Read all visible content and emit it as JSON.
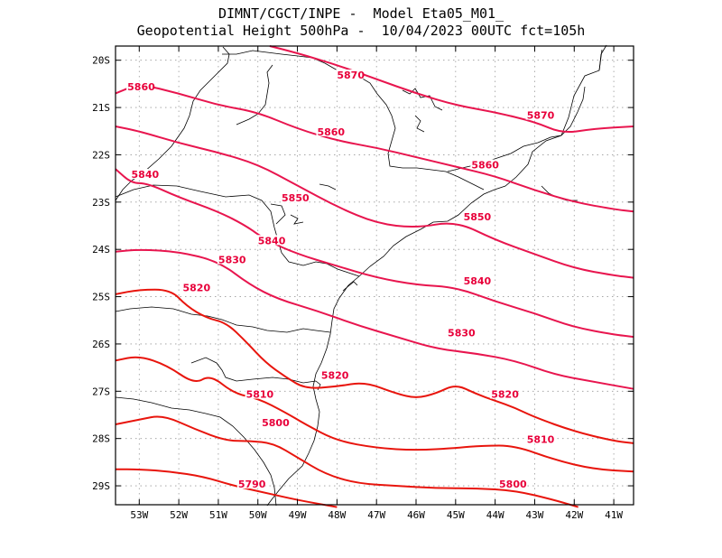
{
  "title": {
    "line1": "DIMNT/CGCT/INPE -  Model Eta05_M01_",
    "line2": "Geopotential Height 500hPa -  10/04/2023 00UTC fct=105h"
  },
  "map": {
    "lon_range": [
      -53.6,
      -40.5
    ],
    "lat_range": [
      -29.4,
      -19.7
    ],
    "x_ticks": [
      "53W",
      "52W",
      "51W",
      "50W",
      "49W",
      "48W",
      "47W",
      "46W",
      "45W",
      "44W",
      "43W",
      "42W",
      "41W"
    ],
    "y_ticks": [
      "20S",
      "21S",
      "22S",
      "23S",
      "24S",
      "25S",
      "26S",
      "27S",
      "28S",
      "29S"
    ],
    "grid": "dotted",
    "colors": {
      "contour_high": "#e8154e",
      "contour_low": "#e8150d",
      "label": "#e8003a",
      "coast": "#000000"
    }
  },
  "contours": [
    {
      "value": 5870,
      "label": "5870",
      "points": [
        [
          -49.7,
          -19.7
        ],
        [
          -49.0,
          -19.85
        ],
        [
          -48.0,
          -20.1
        ],
        [
          -47.0,
          -20.4
        ],
        [
          -46.0,
          -20.7
        ],
        [
          -45.0,
          -20.95
        ],
        [
          -44.0,
          -21.1
        ],
        [
          -43.0,
          -21.3
        ],
        [
          -42.3,
          -21.55
        ],
        [
          -41.5,
          -21.45
        ],
        [
          -40.5,
          -21.4
        ]
      ],
      "labels": [
        [
          -48.0,
          -20.35,
          "5870"
        ],
        [
          -43.2,
          -21.2,
          "5870"
        ]
      ]
    },
    {
      "value": 5860,
      "label": "5860",
      "points": [
        [
          -53.6,
          -20.7
        ],
        [
          -53.0,
          -20.5
        ],
        [
          -52.0,
          -20.7
        ],
        [
          -51.0,
          -20.95
        ],
        [
          -50.0,
          -21.1
        ],
        [
          -49.0,
          -21.45
        ],
        [
          -48.0,
          -21.7
        ],
        [
          -47.0,
          -21.85
        ],
        [
          -46.0,
          -22.05
        ],
        [
          -45.0,
          -22.25
        ],
        [
          -44.0,
          -22.45
        ],
        [
          -43.0,
          -22.75
        ],
        [
          -42.0,
          -23.0
        ],
        [
          -41.0,
          -23.15
        ],
        [
          -40.5,
          -23.2
        ]
      ],
      "labels": [
        [
          -53.3,
          -20.6,
          "5860"
        ],
        [
          -48.5,
          -21.55,
          "5860"
        ],
        [
          -44.6,
          -22.25,
          "5860"
        ]
      ]
    },
    {
      "value": 5850,
      "label": "5850",
      "points": [
        [
          -53.6,
          -21.4
        ],
        [
          -53.0,
          -21.5
        ],
        [
          -52.0,
          -21.75
        ],
        [
          -51.0,
          -21.95
        ],
        [
          -50.0,
          -22.2
        ],
        [
          -49.0,
          -22.65
        ],
        [
          -48.0,
          -23.1
        ],
        [
          -47.0,
          -23.45
        ],
        [
          -46.0,
          -23.55
        ],
        [
          -45.0,
          -23.4
        ],
        [
          -44.0,
          -23.8
        ],
        [
          -43.0,
          -24.1
        ],
        [
          -42.0,
          -24.4
        ],
        [
          -41.0,
          -24.55
        ],
        [
          -40.5,
          -24.6
        ]
      ],
      "labels": [
        [
          -49.4,
          -22.95,
          "5850"
        ],
        [
          -44.8,
          -23.35,
          "5850"
        ]
      ]
    },
    {
      "value": 5840,
      "label": "5840",
      "points": [
        [
          -53.6,
          -22.3
        ],
        [
          -53.2,
          -22.6
        ],
        [
          -52.8,
          -22.6
        ],
        [
          -52.0,
          -22.9
        ],
        [
          -51.0,
          -23.2
        ],
        [
          -50.3,
          -23.5
        ],
        [
          -49.8,
          -23.8
        ],
        [
          -49.0,
          -24.1
        ],
        [
          -48.0,
          -24.35
        ],
        [
          -47.0,
          -24.6
        ],
        [
          -46.0,
          -24.75
        ],
        [
          -45.0,
          -24.8
        ],
        [
          -44.0,
          -25.1
        ],
        [
          -43.0,
          -25.35
        ],
        [
          -42.0,
          -25.65
        ],
        [
          -41.0,
          -25.8
        ],
        [
          -40.5,
          -25.85
        ]
      ],
      "labels": [
        [
          -53.2,
          -22.45,
          "5840"
        ],
        [
          -50.0,
          -23.85,
          "5840"
        ],
        [
          -44.8,
          -24.7,
          "5840"
        ]
      ]
    },
    {
      "value": 5830,
      "label": "5830",
      "points": [
        [
          -53.6,
          -24.05
        ],
        [
          -53.0,
          -24.0
        ],
        [
          -52.0,
          -24.05
        ],
        [
          -51.0,
          -24.25
        ],
        [
          -50.2,
          -24.75
        ],
        [
          -49.5,
          -25.05
        ],
        [
          -48.5,
          -25.3
        ],
        [
          -47.5,
          -25.6
        ],
        [
          -46.5,
          -25.85
        ],
        [
          -45.5,
          -26.1
        ],
        [
          -44.5,
          -26.2
        ],
        [
          -43.5,
          -26.35
        ],
        [
          -42.5,
          -26.65
        ],
        [
          -41.5,
          -26.8
        ],
        [
          -40.5,
          -26.95
        ]
      ],
      "labels": [
        [
          -51.0,
          -24.25,
          "5830"
        ],
        [
          -45.2,
          -25.8,
          "5830"
        ]
      ]
    },
    {
      "value": 5820,
      "label": "5820",
      "points": [
        [
          -53.6,
          -24.95
        ],
        [
          -53.0,
          -24.85
        ],
        [
          -52.2,
          -24.85
        ],
        [
          -51.8,
          -25.2
        ],
        [
          -51.3,
          -25.45
        ],
        [
          -50.8,
          -25.55
        ],
        [
          -50.3,
          -25.95
        ],
        [
          -49.8,
          -26.4
        ],
        [
          -49.3,
          -26.7
        ],
        [
          -48.8,
          -26.95
        ],
        [
          -48.0,
          -26.9
        ],
        [
          -47.3,
          -26.8
        ],
        [
          -46.5,
          -27.05
        ],
        [
          -46.0,
          -27.15
        ],
        [
          -45.5,
          -27.05
        ],
        [
          -45.0,
          -26.85
        ],
        [
          -44.5,
          -27.05
        ],
        [
          -44.0,
          -27.2
        ],
        [
          -43.5,
          -27.35
        ],
        [
          -43.0,
          -27.55
        ],
        [
          -42.0,
          -27.85
        ],
        [
          -41.0,
          -28.05
        ],
        [
          -40.5,
          -28.1
        ]
      ],
      "labels": [
        [
          -51.9,
          -24.85,
          "5820"
        ],
        [
          -48.4,
          -26.7,
          "5820"
        ],
        [
          -44.1,
          -27.1,
          "5820"
        ]
      ]
    },
    {
      "value": 5810,
      "label": "5810",
      "points": [
        [
          -53.6,
          -26.35
        ],
        [
          -53.0,
          -26.25
        ],
        [
          -52.3,
          -26.45
        ],
        [
          -51.6,
          -26.85
        ],
        [
          -51.2,
          -26.65
        ],
        [
          -50.6,
          -27.05
        ],
        [
          -50.0,
          -27.15
        ],
        [
          -49.3,
          -27.45
        ],
        [
          -48.8,
          -27.7
        ],
        [
          -48.0,
          -28.05
        ],
        [
          -47.0,
          -28.2
        ],
        [
          -46.0,
          -28.25
        ],
        [
          -45.0,
          -28.2
        ],
        [
          -44.3,
          -28.15
        ],
        [
          -43.5,
          -28.15
        ],
        [
          -42.5,
          -28.45
        ],
        [
          -41.5,
          -28.65
        ],
        [
          -40.5,
          -28.7
        ]
      ],
      "labels": [
        [
          -50.3,
          -27.1,
          "5810"
        ],
        [
          -43.2,
          -28.05,
          "5810"
        ]
      ]
    },
    {
      "value": 5800,
      "label": "5800",
      "points": [
        [
          -53.6,
          -27.7
        ],
        [
          -53.0,
          -27.6
        ],
        [
          -52.4,
          -27.5
        ],
        [
          -51.6,
          -27.8
        ],
        [
          -50.8,
          -28.05
        ],
        [
          -50.2,
          -28.05
        ],
        [
          -49.6,
          -28.1
        ],
        [
          -49.0,
          -28.4
        ],
        [
          -48.3,
          -28.75
        ],
        [
          -47.5,
          -28.95
        ],
        [
          -46.5,
          -29.0
        ],
        [
          -45.5,
          -29.05
        ],
        [
          -44.5,
          -29.05
        ],
        [
          -43.5,
          -29.1
        ],
        [
          -42.5,
          -29.3
        ],
        [
          -41.9,
          -29.45
        ]
      ],
      "labels": [
        [
          -49.9,
          -27.7,
          "5800"
        ],
        [
          -43.9,
          -29.0,
          "5800"
        ]
      ]
    },
    {
      "value": 5790,
      "label": "5790",
      "points": [
        [
          -53.6,
          -28.65
        ],
        [
          -53.0,
          -28.65
        ],
        [
          -52.2,
          -28.7
        ],
        [
          -51.4,
          -28.8
        ],
        [
          -50.6,
          -29.0
        ],
        [
          -49.8,
          -29.15
        ],
        [
          -49.0,
          -29.3
        ],
        [
          -48.0,
          -29.45
        ]
      ],
      "labels": [
        [
          -50.5,
          -29.0,
          "5790"
        ]
      ]
    }
  ]
}
